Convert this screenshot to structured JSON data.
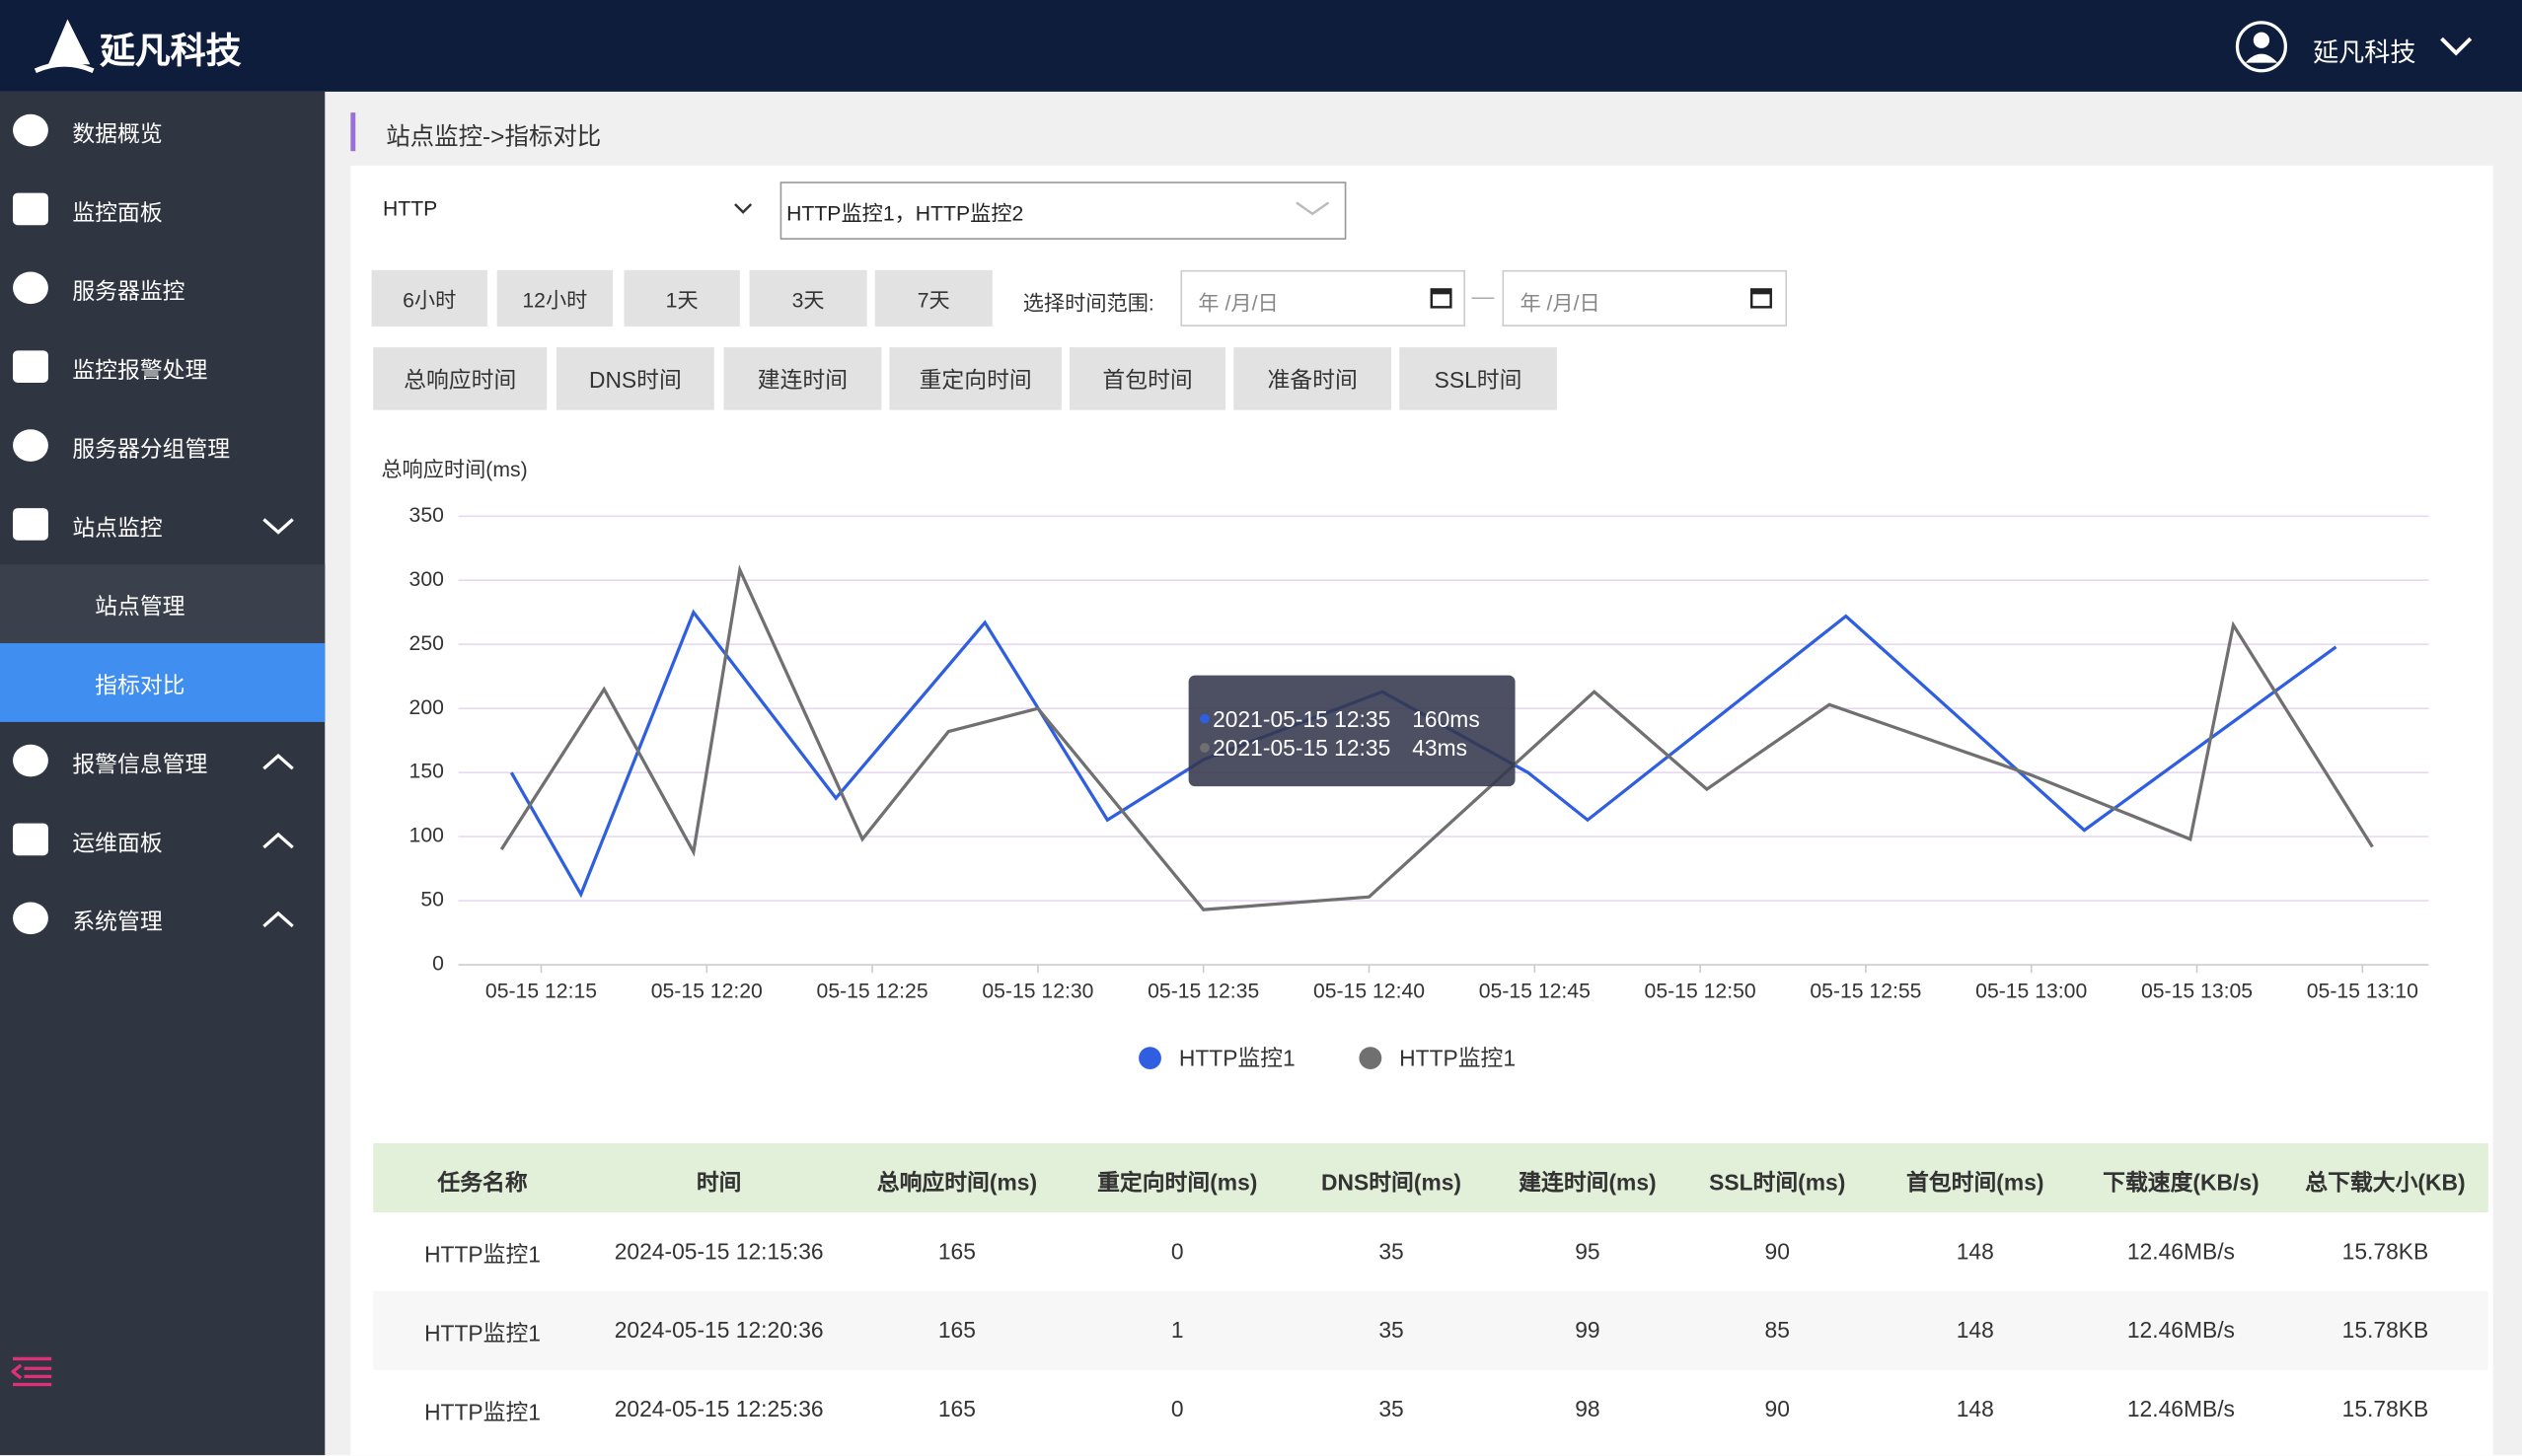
{
  "header": {
    "brand": "延凡科技",
    "user": "延凡科技"
  },
  "sidebar": {
    "items": [
      "数据概览",
      "监控面板",
      "服务器监控",
      "监控报警处理",
      "服务器分组管理",
      "站点监控",
      "站点管理",
      "指标对比",
      "报警信息管理",
      "运维面板",
      "系统管理"
    ]
  },
  "breadcrumb": "站点监控->指标对比",
  "filters": {
    "protocol": "HTTP",
    "monitors": "HTTP监控1，HTTP监控2",
    "ranges": [
      "6小时",
      "12小时",
      "1天",
      "3天",
      "7天"
    ],
    "range_label": "选择时间范围:",
    "dates": [
      "年 /月/日",
      "年 /月/日"
    ],
    "separator": "—"
  },
  "metrics": [
    "总响应时间",
    "DNS时间",
    "建连时间",
    "重定向时间",
    "首包时间",
    "准备时间",
    "SSL时间"
  ],
  "chart_data": {
    "type": "line",
    "y_label": "总响应时间(ms)",
    "xlim": [
      12.5,
      72
    ],
    "xticks": [
      {
        "value": 15,
        "label": "05-15 12:15"
      },
      {
        "value": 20,
        "label": "05-15 12:20"
      },
      {
        "value": 25,
        "label": "05-15 12:25"
      },
      {
        "value": 30,
        "label": "05-15 12:30"
      },
      {
        "value": 35,
        "label": "05-15 12:35"
      },
      {
        "value": 40,
        "label": "05-15 12:40"
      },
      {
        "value": 45,
        "label": "05-15 12:45"
      },
      {
        "value": 50,
        "label": "05-15 12:50"
      },
      {
        "value": 55,
        "label": "05-15 12:55"
      },
      {
        "value": 60,
        "label": "05-15 13:00"
      },
      {
        "value": 65,
        "label": "05-15 13:05"
      },
      {
        "value": 70,
        "label": "05-15 13:10"
      }
    ],
    "ylim": [
      0,
      350
    ],
    "yticks": [
      0,
      50,
      100,
      150,
      200,
      250,
      300,
      350
    ],
    "grid": true,
    "series": [
      {
        "name": "HTTP监控1",
        "color": "#2f5fe0",
        "x": [
          14.1,
          16.2,
          19.6,
          23.9,
          28.4,
          32.1,
          35,
          40.4,
          44.8,
          46.6,
          54.4,
          61.6,
          69.2
        ],
        "values": [
          150,
          55,
          275,
          130,
          267,
          113,
          160,
          213,
          150,
          113,
          272,
          105,
          248
        ]
      },
      {
        "name": "HTTP监控1",
        "color": "#707070",
        "x": [
          13.8,
          16.9,
          19.6,
          21,
          24.7,
          27.3,
          30,
          35,
          40,
          46.8,
          50.2,
          53.9,
          60,
          64.8,
          66.1,
          70.3
        ],
        "values": [
          90,
          215,
          88,
          308,
          98,
          182,
          200,
          43,
          53,
          213,
          137,
          203,
          148,
          98,
          265,
          92
        ]
      }
    ]
  },
  "tooltip": {
    "rows": [
      {
        "time": "2021-05-15 12:35",
        "value": "160ms"
      },
      {
        "time": "2021-05-15 12:35",
        "value": "43ms"
      }
    ]
  },
  "table": {
    "header": [
      "任务名称",
      "时间",
      "总响应时间(ms)",
      "重定向时间(ms)",
      "DNS时间(ms)",
      "建连时间(ms)",
      "SSL时间(ms)",
      "首包时间(ms)",
      "下载速度(KB/s)",
      "总下载大小(KB)"
    ],
    "rows": [
      [
        "HTTP监控1",
        "2024-05-15 12:15:36",
        "165",
        "0",
        "35",
        "95",
        "90",
        "148",
        "12.46MB/s",
        "15.78KB"
      ],
      [
        "HTTP监控1",
        "2024-05-15 12:20:36",
        "165",
        "1",
        "35",
        "99",
        "85",
        "148",
        "12.46MB/s",
        "15.78KB"
      ],
      [
        "HTTP监控1",
        "2024-05-15 12:25:36",
        "165",
        "0",
        "35",
        "98",
        "90",
        "148",
        "12.46MB/s",
        "15.78KB"
      ]
    ]
  }
}
